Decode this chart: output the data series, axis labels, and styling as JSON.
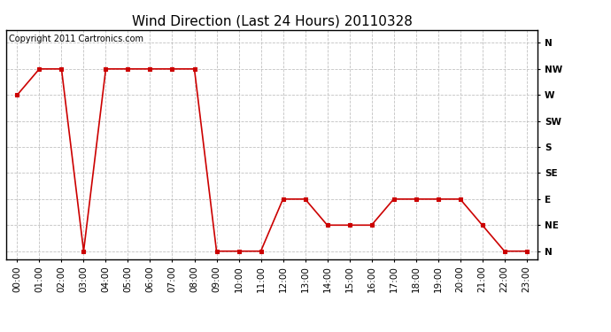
{
  "title": "Wind Direction (Last 24 Hours) 20110328",
  "copyright_text": "Copyright 2011 Cartronics.com",
  "background_color": "#ffffff",
  "plot_bg_color": "#ffffff",
  "line_color": "#cc0000",
  "marker_color": "#cc0000",
  "grid_color": "#bbbbbb",
  "x_labels": [
    "00:00",
    "01:00",
    "02:00",
    "03:00",
    "04:00",
    "05:00",
    "06:00",
    "07:00",
    "08:00",
    "09:00",
    "10:00",
    "11:00",
    "12:00",
    "13:00",
    "14:00",
    "15:00",
    "16:00",
    "17:00",
    "18:00",
    "19:00",
    "20:00",
    "21:00",
    "22:00",
    "23:00"
  ],
  "y_ticks": [
    0,
    1,
    2,
    3,
    4,
    5,
    6,
    7,
    8
  ],
  "y_labels": [
    "N",
    "NE",
    "E",
    "SE",
    "S",
    "SW",
    "W",
    "NW",
    "N"
  ],
  "data": [
    [
      0,
      6
    ],
    [
      1,
      7
    ],
    [
      2,
      7
    ],
    [
      3,
      0
    ],
    [
      4,
      7
    ],
    [
      5,
      7
    ],
    [
      6,
      7
    ],
    [
      7,
      7
    ],
    [
      8,
      7
    ],
    [
      9,
      0
    ],
    [
      10,
      0
    ],
    [
      11,
      0
    ],
    [
      12,
      2
    ],
    [
      13,
      2
    ],
    [
      14,
      1
    ],
    [
      15,
      1
    ],
    [
      16,
      1
    ],
    [
      17,
      2
    ],
    [
      18,
      2
    ],
    [
      19,
      2
    ],
    [
      20,
      2
    ],
    [
      21,
      1
    ],
    [
      22,
      0
    ],
    [
      23,
      0
    ]
  ],
  "title_fontsize": 11,
  "tick_fontsize": 7.5,
  "copyright_fontsize": 7,
  "ylim": [
    -0.3,
    8.5
  ],
  "xlim": [
    -0.5,
    23.5
  ]
}
